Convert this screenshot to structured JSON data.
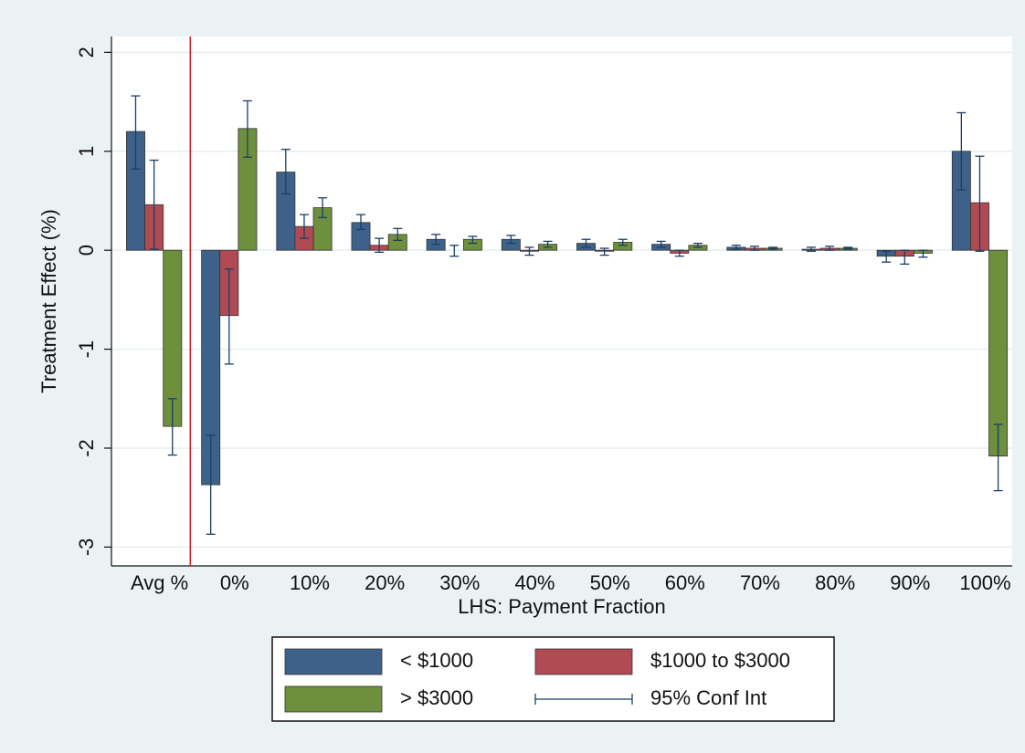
{
  "chart_data": {
    "type": "bar",
    "y_label": "Treatment Effect (%)",
    "x_label": "LHS: Payment Fraction",
    "categories": [
      "Avg %",
      "0%",
      "10%",
      "20%",
      "30%",
      "40%",
      "50%",
      "60%",
      "70%",
      "80%",
      "90%",
      "100%"
    ],
    "series": [
      {
        "name": "< $1000",
        "color": "#3e6189",
        "values": [
          1.2,
          -2.37,
          0.79,
          0.28,
          0.11,
          0.11,
          0.07,
          0.06,
          0.03,
          0.01,
          -0.06,
          1.0
        ],
        "ci_low": [
          0.82,
          -2.87,
          0.57,
          0.21,
          0.06,
          0.07,
          0.03,
          0.03,
          0.01,
          -0.01,
          -0.12,
          0.61
        ],
        "ci_high": [
          1.56,
          -1.87,
          1.02,
          0.36,
          0.16,
          0.15,
          0.11,
          0.09,
          0.05,
          0.03,
          -0.01,
          1.39
        ]
      },
      {
        "name": "$1000 to $3000",
        "color": "#b04a53",
        "values": [
          0.46,
          -0.66,
          0.24,
          0.05,
          0.0,
          -0.01,
          -0.01,
          -0.03,
          0.02,
          0.02,
          -0.06,
          0.48
        ],
        "ci_low": [
          0.01,
          -1.15,
          0.12,
          -0.02,
          -0.06,
          -0.05,
          -0.05,
          -0.06,
          0.0,
          0.0,
          -0.14,
          -0.01
        ],
        "ci_high": [
          0.91,
          -0.19,
          0.36,
          0.12,
          0.05,
          0.03,
          0.02,
          0.0,
          0.04,
          0.04,
          0.0,
          0.95
        ]
      },
      {
        "name": "> $3000",
        "color": "#6e8f3c",
        "values": [
          -1.78,
          1.23,
          0.43,
          0.16,
          0.11,
          0.06,
          0.08,
          0.05,
          0.02,
          0.02,
          -0.03,
          -2.08
        ],
        "ci_low": [
          -2.07,
          0.94,
          0.33,
          0.1,
          0.07,
          0.03,
          0.05,
          0.03,
          0.01,
          0.01,
          -0.07,
          -2.43
        ],
        "ci_high": [
          -1.5,
          1.51,
          0.53,
          0.22,
          0.14,
          0.09,
          0.11,
          0.07,
          0.03,
          0.03,
          0.0,
          -1.76
        ]
      }
    ],
    "ci_label": "95% Conf Int",
    "ci_color": "#1a3f66",
    "ylim": [
      -3.19,
      2.16
    ],
    "yticks": [
      -3,
      -2,
      -1,
      0,
      1,
      2
    ],
    "grid": true
  }
}
